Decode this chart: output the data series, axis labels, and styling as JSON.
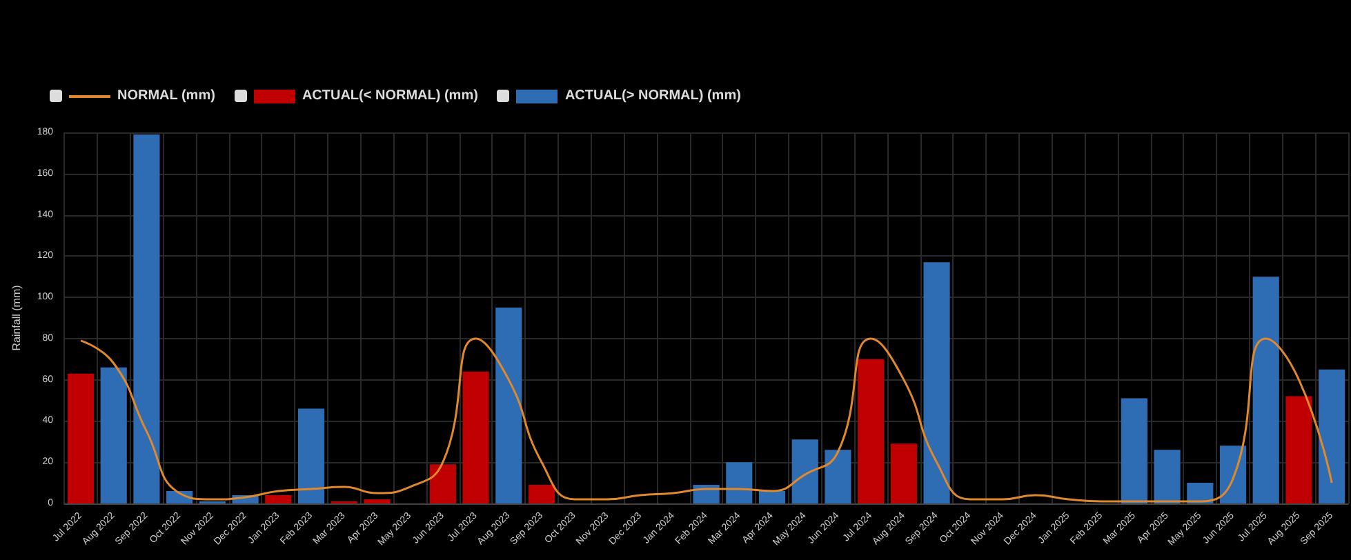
{
  "chart_data": {
    "type": "bar",
    "ylabel": "Rainfall (mm)",
    "categories": [
      "Jul 2022",
      "Aug 2022",
      "Sep 2022",
      "Oct 2022",
      "Nov 2022",
      "Dec 2022",
      "Jan 2023",
      "Feb 2023",
      "Mar 2023",
      "Apr 2023",
      "May 2023",
      "Jun 2023",
      "Jul 2023",
      "Aug 2023",
      "Sep 2023",
      "Oct 2023",
      "Nov 2023",
      "Dec 2023",
      "Jan 2024",
      "Feb 2024",
      "Mar 2024",
      "Apr 2024",
      "May 2024",
      "Jun 2024",
      "Jul 2024",
      "Aug 2024",
      "Sep 2024",
      "Oct 2024",
      "Nov 2024",
      "Dec 2024",
      "Jan 2025",
      "Feb 2025",
      "Mar 2025",
      "Apr 2025",
      "May 2025",
      "Jun 2025",
      "Jul 2025",
      "Aug 2025",
      "Sep 2025"
    ],
    "series": [
      {
        "name": "NORMAL (mm)",
        "type": "line",
        "color": "#e0892c",
        "values": [
          79,
          68,
          35,
          5,
          2,
          3,
          6,
          7,
          8,
          5,
          8,
          20,
          80,
          60,
          20,
          2,
          2,
          4,
          5,
          7,
          7,
          6,
          14,
          25,
          80,
          60,
          20,
          2,
          2,
          4,
          2,
          1,
          1,
          1,
          1,
          12,
          80,
          60,
          10
        ]
      },
      {
        "name": "ACTUAL(< NORMAL) (mm)",
        "type": "bar",
        "color": "#c00000",
        "values": [
          63,
          null,
          null,
          null,
          null,
          null,
          4,
          null,
          1,
          2,
          null,
          19,
          64,
          null,
          9,
          null,
          null,
          null,
          null,
          null,
          null,
          null,
          null,
          null,
          70,
          29,
          null,
          null,
          null,
          null,
          null,
          null,
          null,
          null,
          null,
          null,
          null,
          52,
          null
        ]
      },
      {
        "name": "ACTUAL(> NORMAL) (mm)",
        "type": "bar",
        "color": "#2e6db4",
        "values": [
          null,
          66,
          179,
          6,
          1,
          4,
          null,
          46,
          null,
          null,
          null,
          null,
          null,
          95,
          null,
          null,
          null,
          null,
          null,
          9,
          20,
          6,
          31,
          26,
          null,
          null,
          117,
          null,
          null,
          null,
          null,
          null,
          51,
          26,
          10,
          28,
          110,
          null,
          65
        ]
      }
    ],
    "ylim": [
      0,
      180
    ],
    "yticks": [
      0,
      20,
      40,
      60,
      80,
      100,
      120,
      140,
      160,
      180
    ],
    "grid": true,
    "legend": "top left",
    "marker": "none"
  }
}
